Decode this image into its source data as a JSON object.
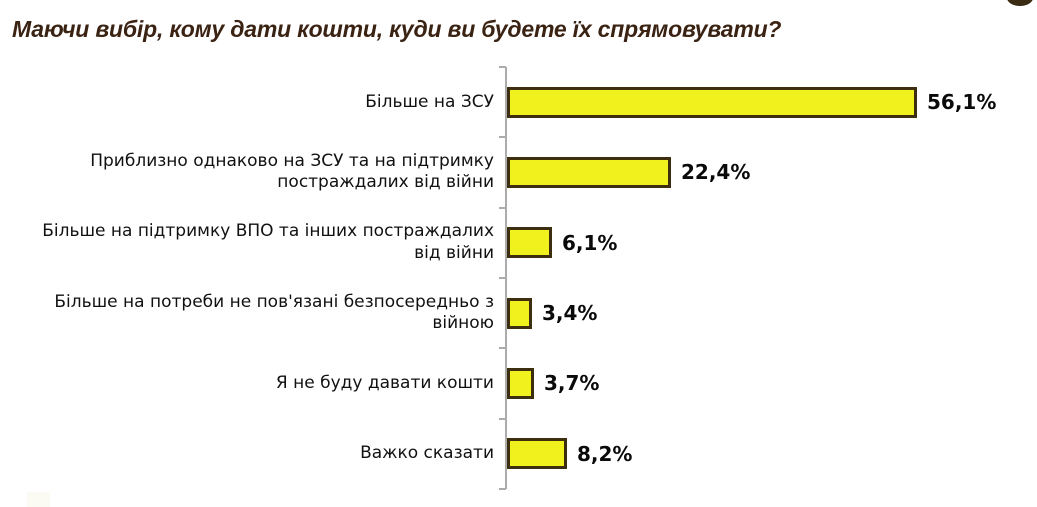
{
  "title": {
    "text": "Маючи вибір, кому дати кошти, куди ви будете їх спрямовувати?"
  },
  "chart_data": {
    "type": "bar",
    "orientation": "horizontal",
    "title": "Маючи вибір, кому дати кошти, куди ви будете їх спрямовувати?",
    "categories": [
      "Більше на ЗСУ",
      "Приблизно однаково на ЗСУ та на підтримку\nпостраждалих від війни",
      "Більше на підтримку ВПО та інших постраждалих\nвід війни",
      "Більше на потреби не пов'язані безпосередньо з\nвійною",
      "Я не буду давати кошти",
      "Важко сказати"
    ],
    "values": [
      56.1,
      22.4,
      6.1,
      3.4,
      3.7,
      8.2
    ],
    "value_labels": [
      "56,1%",
      "22,4%",
      "6,1%",
      "3,4%",
      "3,7%",
      "8,2%"
    ],
    "unit": "%",
    "decimal_separator": ",",
    "xlabel": "",
    "ylabel": "",
    "xlim": [
      0,
      60
    ],
    "grid": false,
    "legend": false,
    "colors": {
      "background": "#ffffff",
      "bar_fill": "#f1f11e",
      "bar_border": "#3d2e10",
      "title_text": "#3a2313",
      "label_text": "#111111",
      "value_text": "#0a0a0a",
      "axis_line": "#acacac"
    }
  },
  "decor": {
    "logo_fragment_color": "#3a2b15",
    "watermark_fragment_color": "#fbfaf3"
  }
}
